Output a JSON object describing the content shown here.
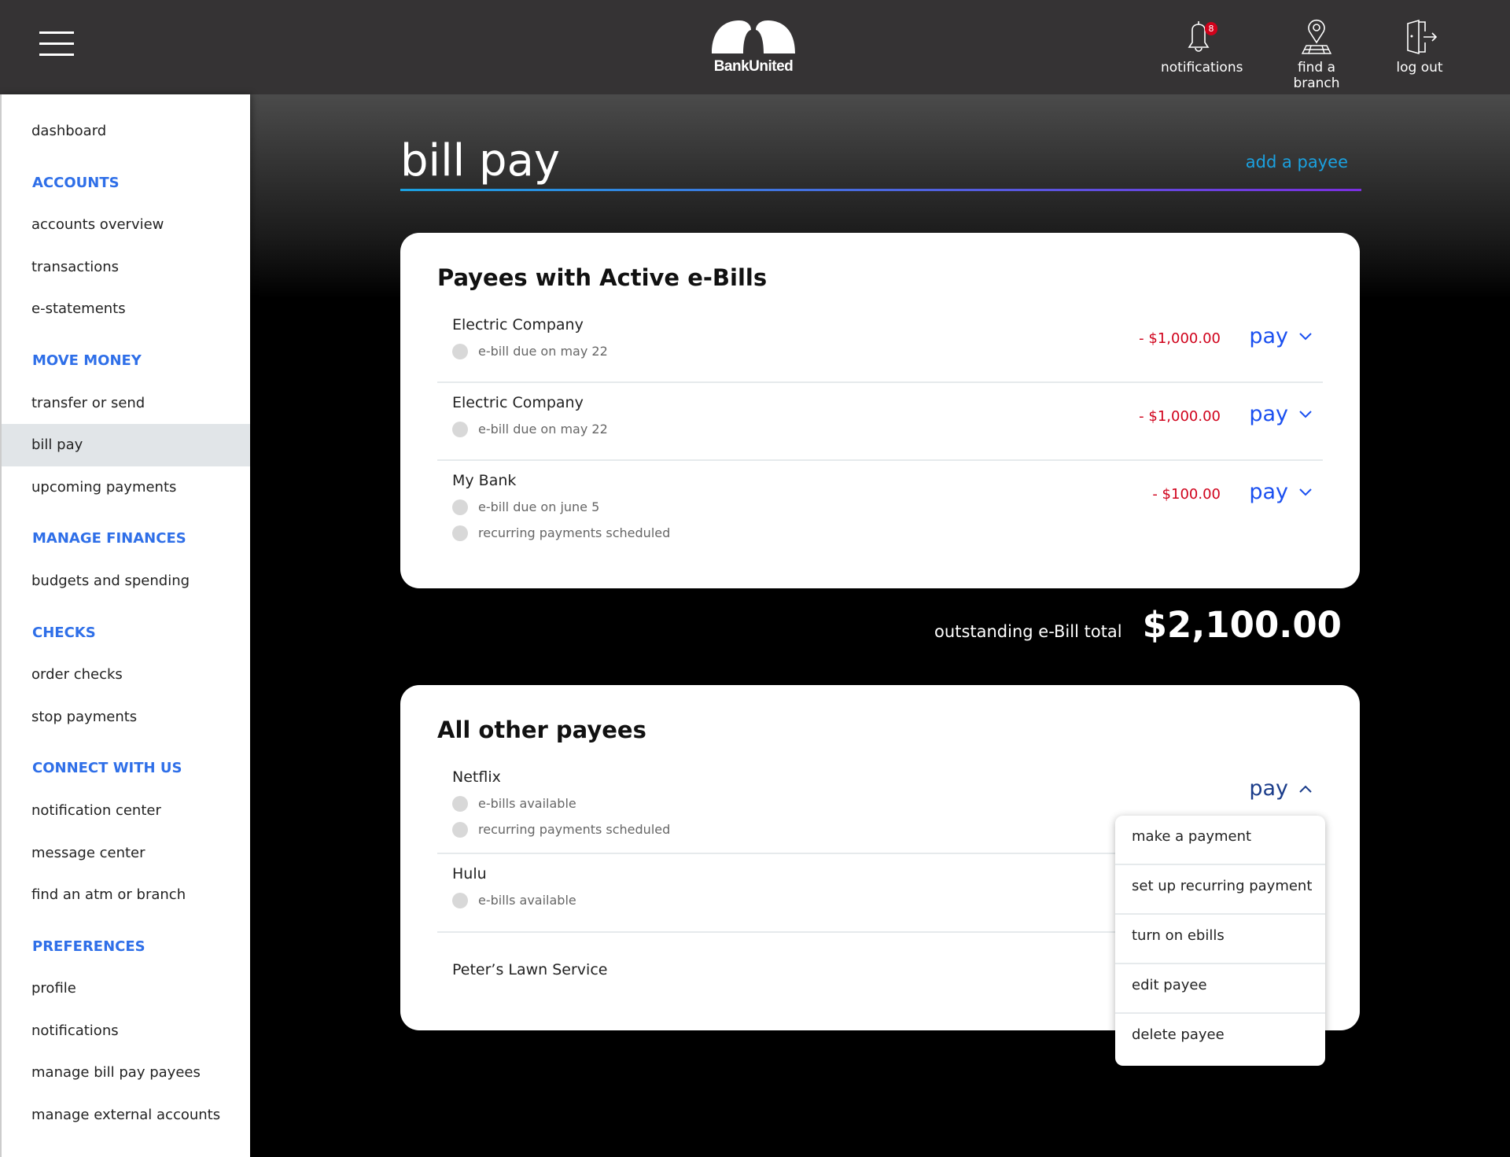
{
  "header": {
    "brand": "BankUnited",
    "notifications_label": "notifications",
    "notifications_count": "8",
    "branch_label": "find a branch",
    "logout_label": "log out",
    "icons": [
      "menu-icon",
      "bell-icon",
      "map-pin-icon",
      "door-exit-icon"
    ]
  },
  "sidebar": {
    "items": [
      {
        "type": "item",
        "label": "dashboard"
      },
      {
        "type": "head",
        "label": "ACCOUNTS"
      },
      {
        "type": "item",
        "label": "accounts overview"
      },
      {
        "type": "item",
        "label": "transactions"
      },
      {
        "type": "item",
        "label": "e-statements"
      },
      {
        "type": "head",
        "label": "MOVE MONEY"
      },
      {
        "type": "item",
        "label": "transfer or send"
      },
      {
        "type": "item",
        "label": "bill pay",
        "selected": true
      },
      {
        "type": "item",
        "label": "upcoming payments"
      },
      {
        "type": "head",
        "label": "MANAGE FINANCES"
      },
      {
        "type": "item",
        "label": "budgets and spending"
      },
      {
        "type": "head",
        "label": "CHECKS"
      },
      {
        "type": "item",
        "label": "order checks"
      },
      {
        "type": "item",
        "label": "stop payments"
      },
      {
        "type": "head",
        "label": "CONNECT WITH US"
      },
      {
        "type": "item",
        "label": "notification center"
      },
      {
        "type": "item",
        "label": "message center"
      },
      {
        "type": "item",
        "label": "find an atm or branch"
      },
      {
        "type": "head",
        "label": "PREFERENCES"
      },
      {
        "type": "item",
        "label": "profile"
      },
      {
        "type": "item",
        "label": "notifications"
      },
      {
        "type": "item",
        "label": "manage bill pay payees"
      },
      {
        "type": "item",
        "label": "manage external accounts"
      }
    ]
  },
  "page": {
    "title": "bill pay",
    "add_payee": "add a payee"
  },
  "ebills": {
    "title": "Payees with Active e-Bills",
    "payees": [
      {
        "name": "Electric Company",
        "subs": [
          "e-bill due on may 22"
        ],
        "amount": "- $1,000.00",
        "pay": "pay"
      },
      {
        "name": "Electric Company",
        "subs": [
          "e-bill due on may 22"
        ],
        "amount": "- $1,000.00",
        "pay": "pay"
      },
      {
        "name": "My Bank",
        "subs": [
          "e-bill due on june 5",
          "recurring payments scheduled"
        ],
        "amount": "- $100.00",
        "pay": "pay"
      }
    ]
  },
  "total": {
    "label": "outstanding e-Bill total",
    "value": "$2,100.00"
  },
  "others": {
    "title": "All other payees",
    "payees": [
      {
        "name": "Netflix",
        "subs": [
          "e-bills available",
          "recurring payments scheduled"
        ],
        "pay": "pay",
        "open": true
      },
      {
        "name": "Hulu",
        "subs": [
          "e-bills available"
        ]
      },
      {
        "name": "Peter’s Lawn Service",
        "subs": []
      }
    ]
  },
  "pay_menu": [
    "make a payment",
    "set up recurring payment",
    "turn on ebills",
    "edit payee",
    "delete payee"
  ],
  "colors": {
    "accent": "#1a4ff0",
    "negative": "#d0021b",
    "link": "#1ba1e0",
    "header_bg": "#353334",
    "section_head": "#2f6fe8"
  }
}
